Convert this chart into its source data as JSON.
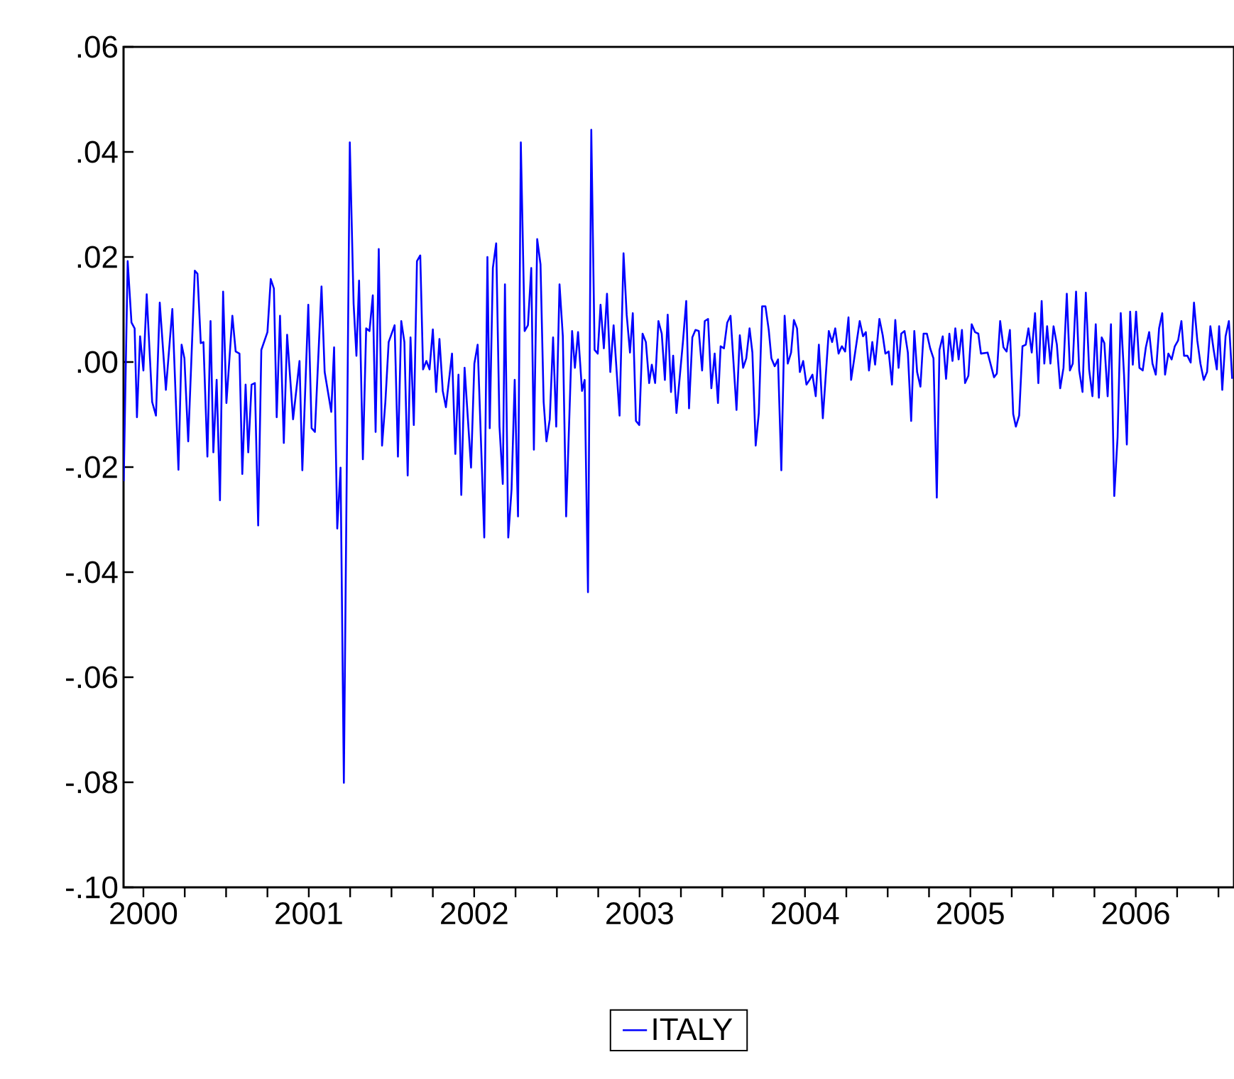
{
  "chart_data": {
    "type": "line",
    "x": [
      2000.381,
      2000.405,
      2000.428,
      2000.447,
      2000.461,
      2000.48,
      2000.5,
      2000.52,
      2000.553,
      2000.576,
      2000.599,
      2000.636,
      2000.675,
      2000.712,
      2000.731,
      2000.748,
      2000.771,
      2000.811,
      2000.827,
      2000.847,
      2000.863,
      2000.887,
      2000.906,
      2000.923,
      2000.943,
      2000.963,
      2000.982,
      2001.002,
      2001.038,
      2001.058,
      2001.081,
      2001.098,
      2001.118,
      2001.134,
      2001.154,
      2001.174,
      2001.194,
      2001.213,
      2001.25,
      2001.27,
      2001.289,
      2001.306,
      2001.326,
      2001.349,
      2001.369,
      2001.405,
      2001.444,
      2001.461,
      2001.497,
      2001.517,
      2001.537,
      2001.577,
      2001.596,
      2001.636,
      2001.653,
      2001.672,
      2001.692,
      2001.712,
      2001.748,
      2001.771,
      2001.788,
      2001.804,
      2001.827,
      2001.847,
      2001.867,
      2001.887,
      2001.904,
      2001.923,
      2001.943,
      2001.963,
      2001.983,
      2002.019,
      2002.039,
      2002.059,
      2002.078,
      2002.098,
      2002.115,
      2002.135,
      2002.154,
      2002.174,
      2002.191,
      2002.211,
      2002.23,
      2002.25,
      2002.27,
      2002.29,
      2002.31,
      2002.329,
      2002.366,
      2002.386,
      2002.405,
      2002.422,
      2002.442,
      2002.481,
      2002.501,
      2002.521,
      2002.561,
      2002.58,
      2002.594,
      2002.613,
      2002.633,
      2002.653,
      2002.673,
      2002.686,
      2002.706,
      2002.726,
      2002.745,
      2002.765,
      2002.782,
      2002.805,
      2002.825,
      2002.845,
      2002.861,
      2002.881,
      2002.901,
      2002.92,
      2002.937,
      2002.957,
      2002.977,
      2002.996,
      2003.016,
      2003.036,
      2003.056,
      2003.092,
      2003.109,
      2003.128,
      2003.152,
      2003.168,
      2003.188,
      2003.208,
      2003.228,
      2003.247,
      2003.264,
      2003.284,
      2003.303,
      2003.323,
      2003.343,
      2003.379,
      2003.403,
      2003.422,
      2003.442,
      2003.459,
      2003.478,
      2003.498,
      2003.518,
      2003.538,
      2003.558,
      2003.574,
      2003.594,
      2003.614,
      2003.634,
      2003.653,
      2003.67,
      2003.69,
      2003.703,
      2003.723,
      2003.762,
      2003.782,
      2003.799,
      2003.819,
      2003.838,
      2003.858,
      2003.878,
      2003.894,
      2003.914,
      2003.934,
      2003.954,
      2003.974,
      2003.99,
      2004.01,
      2004.03,
      2004.05,
      2004.086,
      2004.106,
      2004.126,
      2004.145,
      2004.165,
      2004.182,
      2004.202,
      2004.221,
      2004.241,
      2004.261,
      2004.281,
      2004.297,
      2004.317,
      2004.337,
      2004.357,
      2004.377,
      2004.396,
      2004.416,
      2004.433,
      2004.452,
      2004.469,
      2004.489,
      2004.509,
      2004.528,
      2004.545,
      2004.565,
      2004.584,
      2004.608,
      2004.644,
      2004.664,
      2004.683,
      2004.703,
      2004.723,
      2004.743,
      2004.763,
      2004.779,
      2004.831,
      2004.851,
      2004.868,
      2004.887,
      2004.907,
      2004.924,
      2004.95,
      2004.97,
      2004.986,
      2005.006,
      2005.026,
      2005.046,
      2005.066,
      2005.082,
      2005.102,
      2005.122,
      2005.142,
      2005.161,
      2005.178,
      2005.198,
      2005.217,
      2005.237,
      2005.257,
      2005.277,
      2005.297,
      2005.313,
      2005.333,
      2005.353,
      2005.373,
      2005.392,
      2005.409,
      2005.429,
      2005.449,
      2005.468,
      2005.488,
      2005.508,
      2005.528,
      2005.548,
      2005.564,
      2005.604,
      2005.643,
      2005.66,
      2005.68,
      2005.7,
      2005.719,
      2005.739,
      2005.759,
      2005.775,
      2005.795,
      2005.815,
      2005.835,
      2005.851,
      2005.871,
      2005.891,
      2005.911,
      2005.931,
      2005.947,
      2005.964,
      2005.984,
      2006.003,
      2006.023,
      2006.043,
      2006.063,
      2006.083,
      2006.102,
      2006.119,
      2006.139,
      2006.158,
      2006.178,
      2006.198,
      2006.218,
      2006.238,
      2006.258,
      2006.277,
      2006.294,
      2006.31,
      2006.33,
      2006.35,
      2006.37,
      2006.39,
      2006.409,
      2006.429,
      2006.446,
      2006.466,
      2006.482,
      2006.502,
      2006.522,
      2006.542,
      2006.561,
      2006.581,
      2006.601,
      2006.621,
      2006.641,
      2006.66,
      2006.677,
      2006.697,
      2006.717,
      2006.736,
      2006.756,
      2006.776,
      2006.792,
      2006.812,
      2006.832,
      2006.852,
      2006.872,
      2006.891,
      2006.911,
      2006.931,
      2006.951,
      2006.971,
      2006.99,
      2007.004,
      2007.023,
      2007.043,
      2007.063,
      2007.083
    ],
    "series": [
      {
        "name": "ITALY",
        "color": "#0000ff",
        "values": [
          -0.0227,
          0.0192,
          0.0075,
          0.0064,
          -0.0105,
          0.0049,
          -0.0016,
          0.0129,
          -0.0076,
          -0.0102,
          0.0113,
          -0.0053,
          0.0101,
          -0.0205,
          0.0033,
          0.0007,
          -0.0151,
          0.0174,
          0.0168,
          0.0036,
          0.0038,
          -0.018,
          0.0078,
          -0.0172,
          -0.0034,
          -0.0263,
          0.0134,
          -0.0078,
          0.0088,
          0.002,
          0.0016,
          -0.0213,
          -0.0043,
          -0.0172,
          -0.0043,
          -0.004,
          -0.0311,
          0.0023,
          0.0057,
          0.0158,
          0.014,
          -0.0105,
          0.0088,
          -0.0154,
          0.0052,
          -0.0109,
          0.0002,
          -0.0206,
          0.0109,
          -0.0126,
          -0.0133,
          0.0144,
          -0.0019,
          -0.0095,
          0.0028,
          -0.0317,
          -0.0201,
          -0.0801,
          0.0418,
          0.0111,
          0.0012,
          0.0155,
          -0.0185,
          0.0064,
          0.0059,
          0.0127,
          -0.0133,
          0.0215,
          -0.0159,
          -0.0076,
          0.0038,
          0.007,
          -0.018,
          0.0078,
          0.0038,
          -0.0216,
          0.0047,
          -0.012,
          0.0192,
          0.0203,
          -0.0014,
          0.0002,
          -0.0014,
          0.0062,
          -0.0057,
          0.0044,
          -0.0055,
          -0.0086,
          0.0016,
          -0.0175,
          -0.0024,
          -0.0253,
          -0.0011,
          -0.0201,
          -0.0003,
          0.0033,
          -0.0334,
          0.02,
          -0.0126,
          0.0179,
          0.0226,
          -0.0123,
          -0.0232,
          0.0148,
          -0.0334,
          -0.0242,
          -0.0034,
          -0.0294,
          0.0418,
          0.0059,
          0.007,
          0.0179,
          -0.0167,
          0.0234,
          0.0186,
          -0.0076,
          -0.0151,
          -0.0109,
          0.0047,
          -0.0123,
          0.0148,
          0.0049,
          -0.0294,
          0.0059,
          -0.0011,
          0.0057,
          -0.0055,
          -0.0034,
          -0.0438,
          0.0442,
          0.0023,
          0.0016,
          0.0109,
          0.0026,
          0.013,
          -0.0019,
          0.007,
          -0.0102,
          0.0207,
          0.009,
          0.0018,
          0.0093,
          -0.0112,
          -0.012,
          0.0054,
          0.0038,
          -0.004,
          -0.0005,
          -0.004,
          0.0078,
          0.0054,
          -0.0034,
          0.009,
          -0.0057,
          0.0012,
          -0.0097,
          0.0038,
          0.0116,
          -0.0088,
          0.0047,
          0.0061,
          0.0059,
          -0.0016,
          0.0078,
          0.0082,
          -0.005,
          0.0016,
          -0.0078,
          0.003,
          0.0026,
          0.0075,
          0.0088,
          -0.0091,
          0.0051,
          -0.0011,
          0.0007,
          0.0064,
          0.0018,
          -0.0159,
          -0.0097,
          0.0106,
          0.0106,
          0.0061,
          0.0007,
          -0.0008,
          0.0005,
          -0.0206,
          0.0088,
          -0.0003,
          0.0018,
          0.008,
          0.0064,
          -0.0019,
          0.0002,
          -0.0043,
          -0.0034,
          -0.0024,
          -0.0065,
          0.0033,
          -0.0107,
          0.0059,
          0.0038,
          0.0064,
          0.0016,
          0.003,
          0.002,
          0.0085,
          -0.0034,
          0.0078,
          0.0049,
          0.0057,
          -0.0016,
          0.0038,
          -0.0005,
          0.0082,
          0.0051,
          0.0016,
          0.002,
          -0.0043,
          0.008,
          -0.0011,
          0.0054,
          0.0059,
          0.0018,
          -0.0112,
          0.0059,
          -0.0019,
          -0.0047,
          0.0054,
          0.0054,
          0.0026,
          0.0007,
          -0.0258,
          0.0023,
          0.0049,
          -0.0032,
          0.0054,
          0.0002,
          0.0064,
          0.0005,
          0.0061,
          -0.004,
          -0.0026,
          0.0072,
          0.0057,
          0.0054,
          0.0016,
          0.0018,
          -0.0029,
          -0.0022,
          0.0078,
          0.0028,
          0.002,
          0.0061,
          -0.0099,
          -0.0123,
          -0.0102,
          0.003,
          0.0033,
          0.0064,
          0.0018,
          0.0093,
          -0.004,
          0.0116,
          -0.0003,
          0.0068,
          -0.0003,
          0.0068,
          0.0033,
          -0.005,
          -0.0011,
          0.013,
          -0.0016,
          -0.0003,
          0.0134,
          -0.0016,
          -0.0057,
          0.0132,
          -0.0014,
          -0.0065,
          0.0072,
          -0.0068,
          0.0047,
          0.0036,
          -0.0065,
          0.0072,
          -0.0255,
          -0.0143,
          0.0093,
          -0.0024,
          -0.0157,
          0.0096,
          -0.0005,
          0.0096,
          -0.0011,
          -0.0016,
          0.0028,
          0.0057,
          -0.0003,
          -0.0024,
          0.0064,
          0.0093,
          -0.0024,
          0.0016,
          0.0005,
          0.003,
          0.0041,
          0.0078,
          0.0012,
          0.0012,
          -0.0001,
          0.0113,
          0.0041,
          -0.0003,
          -0.0034,
          -0.0019,
          0.0068,
          0.0023,
          -0.0014,
          0.0068,
          -0.0053,
          0.0049,
          0.0078,
          -0.0032
        ]
      }
    ],
    "xlim": [
      2000.38,
      2007.094
    ],
    "xticks": [
      {
        "value": 2000.5,
        "label": "2000"
      },
      {
        "value": 2000.75,
        "label": null
      },
      {
        "value": 2001,
        "label": null
      },
      {
        "value": 2001.25,
        "label": null
      },
      {
        "value": 2001.5,
        "label": "2001"
      },
      {
        "value": 2001.75,
        "label": null
      },
      {
        "value": 2002,
        "label": null
      },
      {
        "value": 2002.25,
        "label": null
      },
      {
        "value": 2002.5,
        "label": "2002"
      },
      {
        "value": 2002.75,
        "label": null
      },
      {
        "value": 2003,
        "label": null
      },
      {
        "value": 2003.25,
        "label": null
      },
      {
        "value": 2003.5,
        "label": "2003"
      },
      {
        "value": 2003.75,
        "label": null
      },
      {
        "value": 2004,
        "label": null
      },
      {
        "value": 2004.25,
        "label": null
      },
      {
        "value": 2004.5,
        "label": "2004"
      },
      {
        "value": 2004.75,
        "label": null
      },
      {
        "value": 2005,
        "label": null
      },
      {
        "value": 2005.25,
        "label": null
      },
      {
        "value": 2005.5,
        "label": "2005"
      },
      {
        "value": 2005.75,
        "label": null
      },
      {
        "value": 2006,
        "label": null
      },
      {
        "value": 2006.25,
        "label": null
      },
      {
        "value": 2006.5,
        "label": "2006"
      },
      {
        "value": 2006.75,
        "label": null
      },
      {
        "value": 2007,
        "label": null
      }
    ],
    "ylim": [
      -0.1,
      0.06
    ],
    "yticks": [
      {
        "value": -0.1,
        "label": "-.10"
      },
      {
        "value": -0.08,
        "label": "-.08"
      },
      {
        "value": -0.06,
        "label": "-.06"
      },
      {
        "value": -0.04,
        "label": "-.04"
      },
      {
        "value": -0.02,
        "label": "-.02"
      },
      {
        "value": 0,
        "label": ".00"
      },
      {
        "value": 0.02,
        "label": ".02"
      },
      {
        "value": 0.04,
        "label": ".04"
      },
      {
        "value": 0.06,
        "label": ".06"
      }
    ],
    "legend": "bottom"
  }
}
